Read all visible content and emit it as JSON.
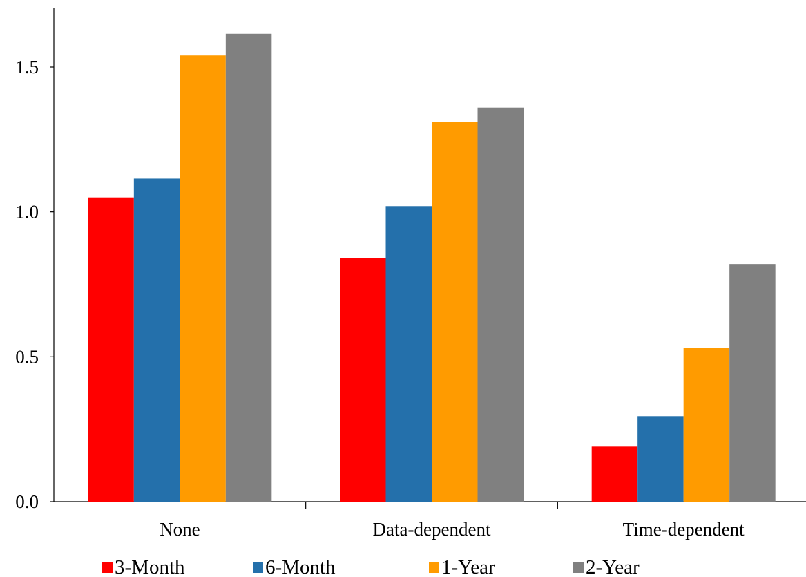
{
  "chart_data": {
    "type": "bar",
    "categories": [
      "None",
      "Data-dependent",
      "Time-dependent"
    ],
    "series": [
      {
        "name": "3-Month",
        "color": "#ff0000",
        "values": [
          1.05,
          0.84,
          0.19
        ]
      },
      {
        "name": "6-Month",
        "color": "#2470ab",
        "values": [
          1.115,
          1.02,
          0.295
        ]
      },
      {
        "name": "1-Year",
        "color": "#ff9b00",
        "values": [
          1.54,
          1.31,
          0.53
        ]
      },
      {
        "name": "2-Year",
        "color": "#808080",
        "values": [
          1.615,
          1.36,
          0.82
        ]
      }
    ],
    "ylim": [
      0,
      1.7
    ],
    "yticks": [
      "0.0",
      "0.5",
      "1.0",
      "1.5"
    ],
    "title": "",
    "xlabel": "",
    "ylabel": "",
    "grid": false,
    "legend_position": "bottom"
  }
}
